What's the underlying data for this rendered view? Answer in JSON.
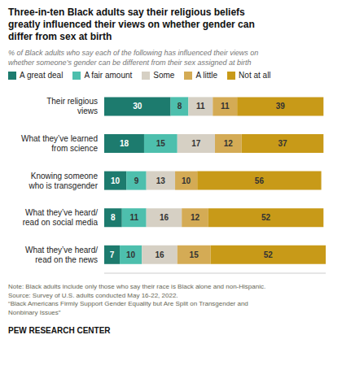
{
  "chart_data": {
    "type": "bar",
    "orientation": "horizontal",
    "stacked": true,
    "data_labels": true,
    "tick_labels": "y",
    "legend": "top",
    "title": "Three-in-ten Black adults say their religious beliefs\ngreatly influenced their views on whether gender can\ndiffer from sex at birth",
    "subtitle": "% of Black adults who say each of the following has influenced their views on\nwhether someone’s gender can be different from their sex assigned at birth",
    "categories": [
      "Their religious\nviews",
      "What they’ve learned\nfrom science",
      "Knowing someone\nwho is transgender",
      "What they’ve heard/\nread on social media",
      "What they’ve heard/\nread on the news"
    ],
    "series": [
      {
        "name": "A great deal",
        "color": "#1d7b6e",
        "values": [
          30,
          18,
          10,
          8,
          7
        ]
      },
      {
        "name": "A fair amount",
        "color": "#4dbfad",
        "values": [
          8,
          15,
          9,
          11,
          10
        ]
      },
      {
        "name": "Some",
        "color": "#d6d0c4",
        "values": [
          11,
          17,
          13,
          16,
          16
        ]
      },
      {
        "name": "A little",
        "color": "#d4ab55",
        "values": [
          11,
          12,
          10,
          12,
          15
        ]
      },
      {
        "name": "Not at all",
        "color": "#c89a18",
        "values": [
          39,
          37,
          56,
          52,
          52
        ]
      }
    ],
    "xlim": [
      0,
      100
    ],
    "annotations": [
      "Note: Black adults include only those who say their race is Black alone and non-Hispanic.\nSource: Survey of U.S. adults conducted May 16-22, 2022.\n“Black Americans Firmly Support Gender Equality but Are Split on Transgender and\nNonbinary Issues”",
      "PEW RESEARCH CENTER"
    ]
  }
}
